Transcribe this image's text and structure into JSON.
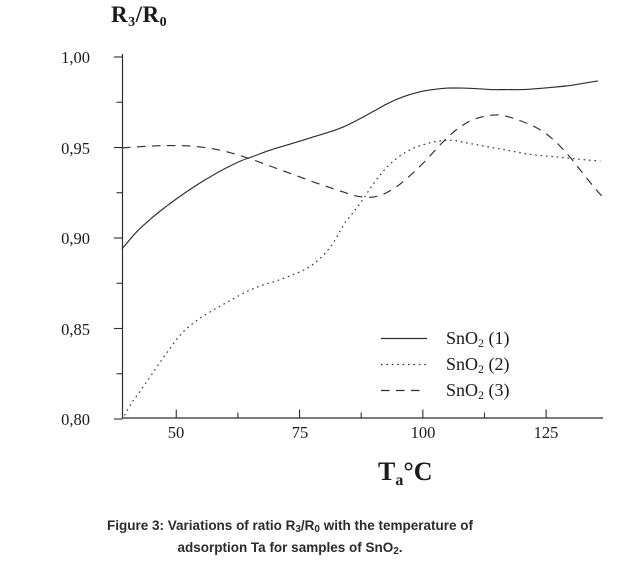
{
  "title": {
    "base1": "R",
    "sub1": "3",
    "divider": "/",
    "base2": "R",
    "sub2": "0"
  },
  "y_axis": {
    "tick_labels": [
      "1,00",
      "0,95",
      "0,90",
      "0,85",
      "0,80"
    ]
  },
  "x_axis": {
    "tick_labels": [
      "50",
      "75",
      "100",
      "125"
    ],
    "label": {
      "base": "T",
      "sub": "a",
      "unit": "°C"
    }
  },
  "legend": {
    "items": [
      {
        "base": "SnO",
        "sub": "2",
        "rest": " (1)",
        "line_style": "solid"
      },
      {
        "base": "SnO",
        "sub": "2",
        "rest": " (2)",
        "line_style": "dotted"
      },
      {
        "base": "SnO",
        "sub": "2",
        "rest": " (3)",
        "line_style": "dashed"
      }
    ]
  },
  "caption": {
    "l1a": "Figure 3: Variations of ratio R",
    "l1sub1": "3",
    "l1b": "/R",
    "l1sub2": "0",
    "l1c": " with the temperature of",
    "l2a": "adsorption Ta for samples of SnO",
    "l2sub": "2",
    "l2b": "."
  },
  "chart_data": {
    "type": "line",
    "title": "R3/R0",
    "xlabel": "Ta °C",
    "ylabel": "R3/R0 ratio",
    "xlim": [
      39,
      136.5
    ],
    "ylim": [
      0.8,
      1.0
    ],
    "x_ticks": [
      50,
      75,
      100,
      125
    ],
    "x_minor_ticks": [
      62.5,
      87.5,
      112.5
    ],
    "y_ticks": [
      0.8,
      0.85,
      0.9,
      0.95,
      1.0
    ],
    "y_minor_ticks": [
      0.825,
      0.875,
      0.925,
      0.975
    ],
    "grid": false,
    "legend_position": "lower right",
    "series": [
      {
        "name": "SnO2 (1)",
        "line_style": "solid",
        "points": [
          [
            39,
            0.894
          ],
          [
            42,
            0.9035
          ],
          [
            45,
            0.911
          ],
          [
            48,
            0.9175
          ],
          [
            51,
            0.9235
          ],
          [
            54,
            0.929
          ],
          [
            57,
            0.934
          ],
          [
            60,
            0.9385
          ],
          [
            63,
            0.9425
          ],
          [
            66,
            0.9455
          ],
          [
            69,
            0.9485
          ],
          [
            72,
            0.951
          ],
          [
            75,
            0.9535
          ],
          [
            78,
            0.956
          ],
          [
            81,
            0.9585
          ],
          [
            84,
            0.9615
          ],
          [
            87,
            0.9655
          ],
          [
            90,
            0.97
          ],
          [
            93,
            0.9745
          ],
          [
            96,
            0.978
          ],
          [
            99,
            0.9805
          ],
          [
            102,
            0.982
          ],
          [
            105,
            0.9828
          ],
          [
            108,
            0.9828
          ],
          [
            111,
            0.9825
          ],
          [
            114,
            0.982
          ],
          [
            117,
            0.982
          ],
          [
            120,
            0.982
          ],
          [
            123,
            0.9825
          ],
          [
            126,
            0.9832
          ],
          [
            129,
            0.984
          ],
          [
            132,
            0.9852
          ],
          [
            135.5,
            0.9868
          ]
        ]
      },
      {
        "name": "SnO2 (2)",
        "line_style": "dotted",
        "points": [
          [
            39.5,
            0.802
          ],
          [
            41,
            0.809
          ],
          [
            43,
            0.8165
          ],
          [
            45,
            0.8245
          ],
          [
            47,
            0.8325
          ],
          [
            49,
            0.84
          ],
          [
            51,
            0.847
          ],
          [
            53,
            0.852
          ],
          [
            55,
            0.856
          ],
          [
            58,
            0.861
          ],
          [
            61,
            0.8655
          ],
          [
            64,
            0.87
          ],
          [
            67,
            0.8735
          ],
          [
            70,
            0.876
          ],
          [
            73,
            0.879
          ],
          [
            76,
            0.8825
          ],
          [
            78,
            0.886
          ],
          [
            80,
            0.891
          ],
          [
            82,
            0.898
          ],
          [
            84,
            0.9075
          ],
          [
            86,
            0.9145
          ],
          [
            88,
            0.922
          ],
          [
            90,
            0.93
          ],
          [
            92,
            0.937
          ],
          [
            94,
            0.9425
          ],
          [
            96,
            0.9465
          ],
          [
            98,
            0.9495
          ],
          [
            100,
            0.9515
          ],
          [
            103,
            0.9535
          ],
          [
            106,
            0.954
          ],
          [
            109,
            0.9525
          ],
          [
            112,
            0.951
          ],
          [
            115,
            0.9495
          ],
          [
            118,
            0.948
          ],
          [
            121,
            0.9465
          ],
          [
            124,
            0.9455
          ],
          [
            127,
            0.9448
          ],
          [
            130,
            0.944
          ],
          [
            133,
            0.9432
          ],
          [
            136,
            0.9425
          ]
        ]
      },
      {
        "name": "SnO2 (3)",
        "line_style": "dashed",
        "points": [
          [
            39,
            0.9498
          ],
          [
            43,
            0.9505
          ],
          [
            47,
            0.951
          ],
          [
            51,
            0.951
          ],
          [
            54,
            0.9505
          ],
          [
            57,
            0.9495
          ],
          [
            60,
            0.9478
          ],
          [
            63,
            0.9455
          ],
          [
            66,
            0.9428
          ],
          [
            69,
            0.9398
          ],
          [
            72,
            0.9368
          ],
          [
            75,
            0.9338
          ],
          [
            78,
            0.9308
          ],
          [
            81,
            0.928
          ],
          [
            84,
            0.9253
          ],
          [
            86.5,
            0.9232
          ],
          [
            89,
            0.9225
          ],
          [
            91,
            0.9232
          ],
          [
            93,
            0.9255
          ],
          [
            95,
            0.929
          ],
          [
            97,
            0.9335
          ],
          [
            99,
            0.9385
          ],
          [
            101,
            0.944
          ],
          [
            103,
            0.95
          ],
          [
            105,
            0.9555
          ],
          [
            107,
            0.9603
          ],
          [
            109,
            0.9638
          ],
          [
            111,
            0.9662
          ],
          [
            113,
            0.9675
          ],
          [
            115,
            0.968
          ],
          [
            117,
            0.9672
          ],
          [
            119,
            0.9655
          ],
          [
            121,
            0.9635
          ],
          [
            123,
            0.961
          ],
          [
            125,
            0.9575
          ],
          [
            127,
            0.953
          ],
          [
            129,
            0.9472
          ],
          [
            131,
            0.9408
          ],
          [
            133,
            0.9338
          ],
          [
            135,
            0.9272
          ],
          [
            136.5,
            0.9225
          ]
        ]
      }
    ]
  }
}
